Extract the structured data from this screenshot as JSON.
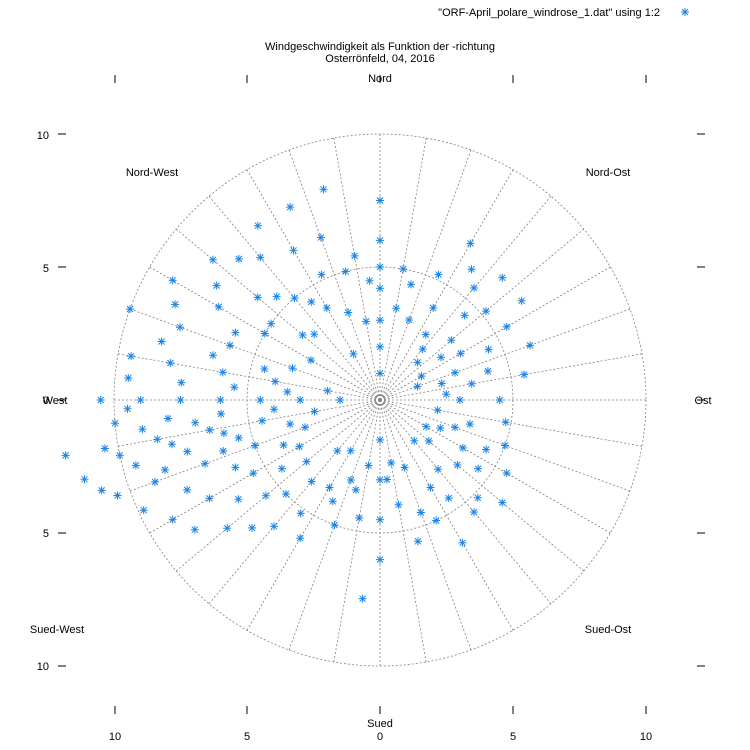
{
  "chart_data": {
    "type": "scatter",
    "title_line1": "Windgeschwindigkeit als Funktion der -richtung",
    "title_line2": "Osterrönfeld, 04, 2016",
    "legend": "\"ORF-April_polare_windrose_1.dat\" using 1:2",
    "legend_placement": "top-right",
    "polar": true,
    "rlim": [
      0,
      10
    ],
    "radial_rings": [
      5,
      10
    ],
    "angular_grid_step_deg": 10,
    "directions": {
      "n": "Nord",
      "ne": "Nord-Ost",
      "e": "Ost",
      "se": "Sued-Ost",
      "s": "Sued",
      "sw": "Sued-West",
      "w": "West",
      "nw": "Nord-West"
    },
    "x_ticks": [
      "10",
      "5",
      "0",
      "5",
      "10"
    ],
    "y_ticks": [
      "10",
      "5",
      "0",
      "5",
      "10"
    ],
    "point_color": "#1a84e6",
    "series_note": "points as [direction_deg (compass, 0 = Nord, clockwise), speed]",
    "series": [
      {
        "values": [
          [
            0,
            7.5
          ],
          [
            0,
            6.0
          ],
          [
            0,
            5.0
          ],
          [
            0,
            4.2
          ],
          [
            0,
            3.0
          ],
          [
            0,
            2.0
          ],
          [
            0,
            1.0
          ],
          [
            10,
            5.0
          ],
          [
            10,
            3.5
          ],
          [
            15,
            4.5
          ],
          [
            20,
            3.2
          ],
          [
            25,
            5.2
          ],
          [
            30,
            6.8
          ],
          [
            30,
            4.0
          ],
          [
            35,
            6.0
          ],
          [
            35,
            3.0
          ],
          [
            40,
            5.5
          ],
          [
            40,
            2.5
          ],
          [
            45,
            6.5
          ],
          [
            45,
            4.5
          ],
          [
            45,
            2.0
          ],
          [
            50,
            5.2
          ],
          [
            50,
            3.5
          ],
          [
            55,
            6.5
          ],
          [
            55,
            2.8
          ],
          [
            60,
            5.5
          ],
          [
            60,
            3.5
          ],
          [
            60,
            1.8
          ],
          [
            65,
            4.5
          ],
          [
            70,
            6.0
          ],
          [
            70,
            3.0
          ],
          [
            70,
            1.5
          ],
          [
            75,
            4.2
          ],
          [
            75,
            2.4
          ],
          [
            80,
            5.5
          ],
          [
            80,
            3.5
          ],
          [
            85,
            2.5
          ],
          [
            90,
            4.5
          ],
          [
            90,
            3.0
          ],
          [
            100,
            4.8
          ],
          [
            100,
            2.2
          ],
          [
            105,
            3.5
          ],
          [
            110,
            5.0
          ],
          [
            110,
            3.0
          ],
          [
            115,
            4.4
          ],
          [
            115,
            2.5
          ],
          [
            120,
            5.5
          ],
          [
            120,
            3.6
          ],
          [
            120,
            2.0
          ],
          [
            125,
            4.5
          ],
          [
            130,
            6.0
          ],
          [
            130,
            3.8
          ],
          [
            130,
            2.4
          ],
          [
            135,
            5.2
          ],
          [
            140,
            5.5
          ],
          [
            140,
            3.4
          ],
          [
            140,
            2.0
          ],
          [
            145,
            4.5
          ],
          [
            150,
            6.2
          ],
          [
            150,
            3.8
          ],
          [
            155,
            5.0
          ],
          [
            160,
            4.5
          ],
          [
            160,
            2.7
          ],
          [
            165,
            5.5
          ],
          [
            170,
            4.0
          ],
          [
            170,
            2.4
          ],
          [
            175,
            3.0
          ],
          [
            180,
            6.0
          ],
          [
            180,
            4.5
          ],
          [
            180,
            3.0
          ],
          [
            180,
            1.5
          ],
          [
            185,
            7.5
          ],
          [
            190,
            4.5
          ],
          [
            190,
            2.5
          ],
          [
            195,
            3.5
          ],
          [
            200,
            5.0
          ],
          [
            200,
            3.2
          ],
          [
            205,
            4.2
          ],
          [
            210,
            6.0
          ],
          [
            210,
            3.8
          ],
          [
            210,
            2.2
          ],
          [
            215,
            5.2
          ],
          [
            220,
            6.2
          ],
          [
            220,
            4.0
          ],
          [
            220,
            2.5
          ],
          [
            225,
            6.8
          ],
          [
            225,
            5.0
          ],
          [
            230,
            7.5
          ],
          [
            230,
            5.6
          ],
          [
            230,
            3.6
          ],
          [
            235,
            8.5
          ],
          [
            235,
            6.5
          ],
          [
            235,
            4.5
          ],
          [
            240,
            9.0
          ],
          [
            240,
            7.4
          ],
          [
            240,
            5.5
          ],
          [
            240,
            3.5
          ],
          [
            245,
            9.8
          ],
          [
            245,
            8.0
          ],
          [
            245,
            6.0
          ],
          [
            245,
            4.0
          ],
          [
            250,
            10.5
          ],
          [
            250,
            9.0
          ],
          [
            250,
            7.0
          ],
          [
            250,
            5.0
          ],
          [
            250,
            3.0
          ],
          [
            252,
            11.0
          ],
          [
            252,
            8.5
          ],
          [
            252,
            6.2
          ],
          [
            255,
            11.5
          ],
          [
            255,
            9.5
          ],
          [
            255,
            7.5
          ],
          [
            255,
            5.5
          ],
          [
            255,
            3.5
          ],
          [
            258,
            10.0
          ],
          [
            258,
            8.0
          ],
          [
            258,
            6.0
          ],
          [
            260,
            12.0
          ],
          [
            260,
            10.5
          ],
          [
            260,
            8.5
          ],
          [
            260,
            6.5
          ],
          [
            260,
            4.5
          ],
          [
            260,
            2.5
          ],
          [
            263,
            9.0
          ],
          [
            263,
            7.0
          ],
          [
            265,
            10.0
          ],
          [
            265,
            8.0
          ],
          [
            265,
            6.0
          ],
          [
            265,
            4.0
          ],
          [
            268,
            9.5
          ],
          [
            270,
            10.5
          ],
          [
            270,
            9.0
          ],
          [
            270,
            7.5
          ],
          [
            270,
            6.0
          ],
          [
            270,
            4.5
          ],
          [
            270,
            3.0
          ],
          [
            270,
            1.5
          ],
          [
            275,
            9.5
          ],
          [
            275,
            7.5
          ],
          [
            275,
            5.5
          ],
          [
            275,
            3.5
          ],
          [
            280,
            9.5
          ],
          [
            280,
            8.0
          ],
          [
            280,
            6.0
          ],
          [
            280,
            4.0
          ],
          [
            280,
            2.0
          ],
          [
            285,
            8.5
          ],
          [
            285,
            6.5
          ],
          [
            285,
            4.5
          ],
          [
            290,
            10.0
          ],
          [
            290,
            8.0
          ],
          [
            290,
            6.0
          ],
          [
            290,
            3.5
          ],
          [
            295,
            8.5
          ],
          [
            295,
            6.0
          ],
          [
            300,
            9.0
          ],
          [
            300,
            7.0
          ],
          [
            300,
            5.0
          ],
          [
            300,
            3.0
          ],
          [
            305,
            7.5
          ],
          [
            305,
            5.0
          ],
          [
            310,
            8.2
          ],
          [
            310,
            6.0
          ],
          [
            310,
            3.8
          ],
          [
            315,
            7.5
          ],
          [
            315,
            5.5
          ],
          [
            315,
            3.5
          ],
          [
            320,
            7.0
          ],
          [
            320,
            5.0
          ],
          [
            325,
            8.0
          ],
          [
            325,
            4.5
          ],
          [
            330,
            6.5
          ],
          [
            330,
            4.0
          ],
          [
            330,
            2.0
          ],
          [
            335,
            8.0
          ],
          [
            335,
            5.2
          ],
          [
            340,
            6.5
          ],
          [
            340,
            3.5
          ],
          [
            345,
            8.2
          ],
          [
            345,
            5.0
          ],
          [
            350,
            5.5
          ],
          [
            350,
            3.0
          ],
          [
            355,
            4.5
          ]
        ]
      }
    ]
  }
}
